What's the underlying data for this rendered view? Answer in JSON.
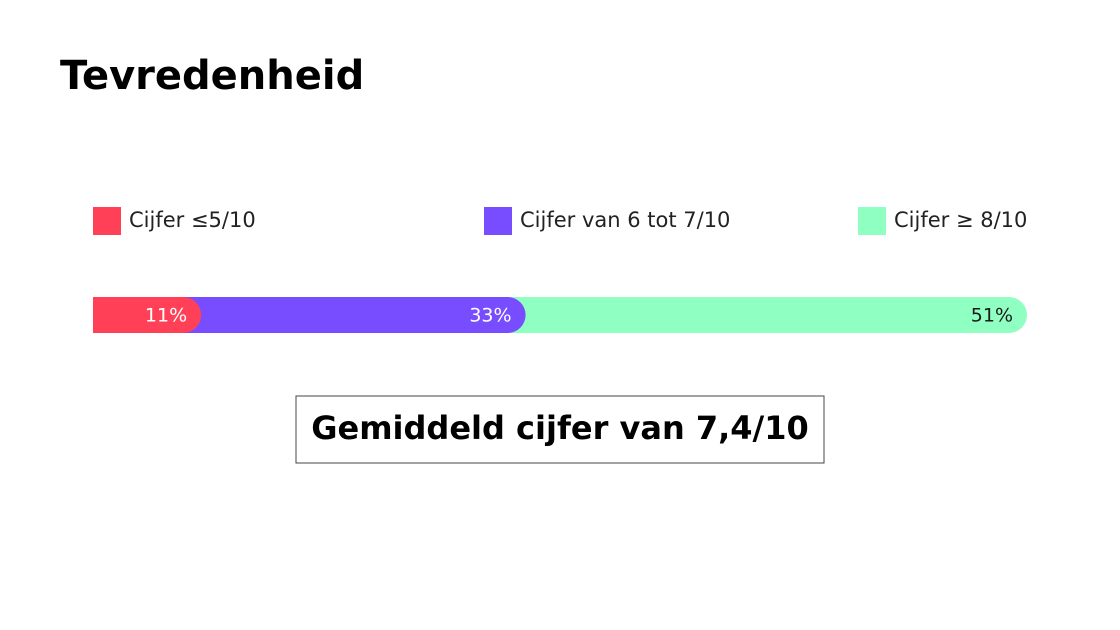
{
  "chart_data": {
    "type": "stacked_bar",
    "title": "Tevredenheid",
    "series": [
      {
        "name": "Cijfer ≤5/10",
        "color": "#ff4057",
        "label_color": "#ffffff",
        "values": [
          11
        ],
        "value_labels": [
          "11%"
        ]
      },
      {
        "name": "Cijfer van 6 tot 7/10",
        "color": "#774dff",
        "label_color": "#ffffff",
        "values": [
          33
        ],
        "value_labels": [
          "33%"
        ]
      },
      {
        "name": "Cijfer ≥ 8/10",
        "color": "#8fffc2",
        "label_color": "#1a1a1a",
        "values": [
          51
        ],
        "value_labels": [
          "51%"
        ]
      }
    ],
    "xlim": [
      0,
      95
    ],
    "annotation": "Gemiddeld cijfer van 7,4/10"
  }
}
